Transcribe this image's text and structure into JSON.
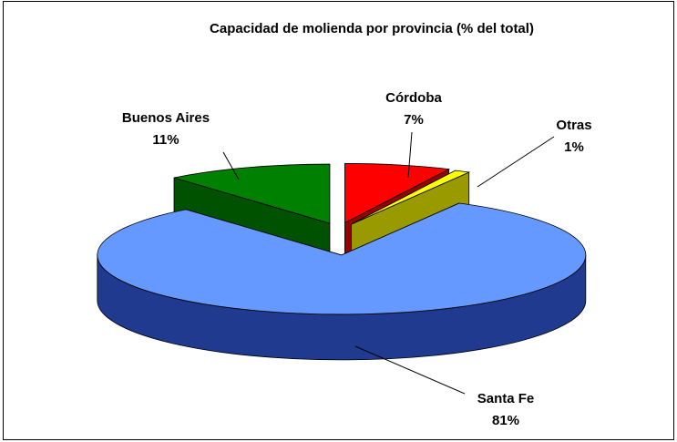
{
  "chart_data": {
    "type": "pie",
    "title": "Capacidad de molienda por provincia (% del total)",
    "categories": [
      "Córdoba",
      "Otras",
      "Santa Fe",
      "Buenos Aires"
    ],
    "values": [
      7,
      1,
      81,
      11
    ],
    "value_labels": [
      "7%",
      "1%",
      "81%",
      "11%"
    ],
    "colors": [
      "#ff0000",
      "#ffff00",
      "#6699ff",
      "#008000"
    ],
    "side_colors": [
      "#990000",
      "#999900",
      "#1f3a8f",
      "#005200"
    ],
    "exploded": true,
    "three_d": true
  }
}
